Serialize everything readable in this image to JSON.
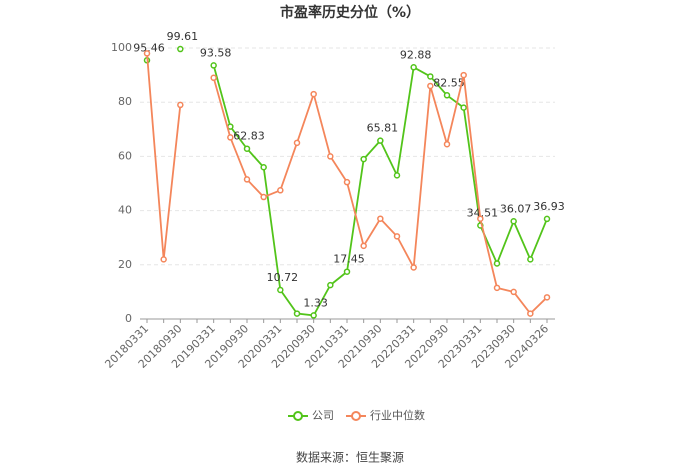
{
  "chart_data": {
    "type": "line",
    "title": "市盈率历史分位（%）",
    "categories": [
      "20180331",
      null,
      "20180930",
      null,
      "20190331",
      null,
      "20190930",
      null,
      "20200331",
      null,
      "20200930",
      null,
      "20210331",
      null,
      "20210930",
      null,
      "20220331",
      null,
      "20220930",
      null,
      "20230331",
      null,
      "20230930",
      null,
      "20240326"
    ],
    "series": [
      {
        "name": "公司",
        "color": "#52c41a",
        "values": [
          95.46,
          null,
          99.61,
          null,
          93.58,
          71,
          62.83,
          56,
          10.72,
          2,
          1.33,
          12.5,
          17.45,
          59,
          65.81,
          53,
          92.88,
          89.5,
          82.55,
          78,
          34.51,
          20.5,
          36.07,
          22,
          36.93
        ],
        "value_labels": [
          "95.46",
          null,
          "99.61",
          null,
          "93.58",
          null,
          "62.83",
          null,
          "10.72",
          null,
          "1.33",
          null,
          "17.45",
          null,
          "65.81",
          null,
          "92.88",
          null,
          "82.55",
          null,
          "34.51",
          null,
          "36.07",
          null,
          "36.93"
        ]
      },
      {
        "name": "行业中位数",
        "color": "#f4865b",
        "values": [
          98,
          22,
          79,
          null,
          89,
          67,
          51.5,
          45,
          47.5,
          65,
          83,
          60,
          50.5,
          27,
          37,
          30.5,
          19,
          86,
          64.5,
          90,
          37,
          11.5,
          10,
          2,
          8
        ]
      }
    ],
    "ylim": [
      0,
      100
    ],
    "yticks": [
      0,
      20,
      40,
      60,
      80,
      100
    ],
    "grid": true,
    "legend": "bottom",
    "source": "数据来源：恒生聚源"
  }
}
